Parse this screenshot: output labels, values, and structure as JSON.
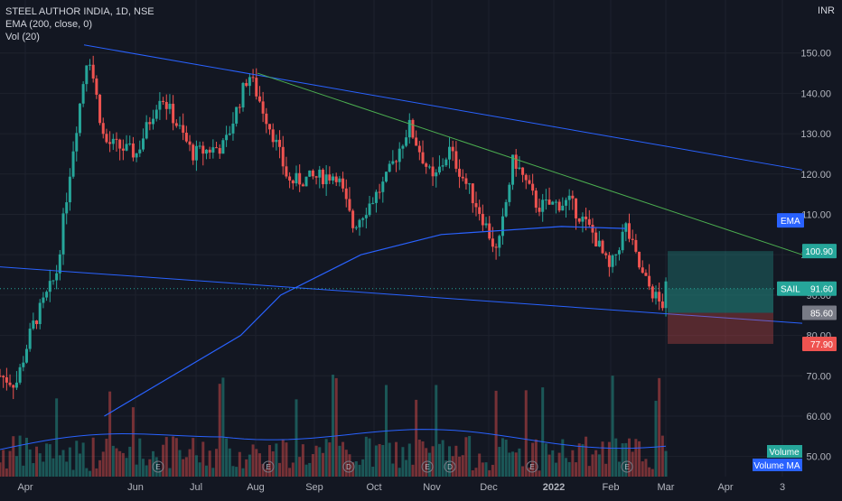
{
  "legend": {
    "symbol": "STEEL AUTHOR INDIA, 1D, NSE",
    "ema": "EMA (200, close, 0)",
    "vol": "Vol (20)"
  },
  "currency": "INR",
  "colors": {
    "background": "#131722",
    "up": "#26a69a",
    "down": "#ef5350",
    "trendline": "#2962ff",
    "ema": "#2962ff",
    "green_line": "#4caf50",
    "grid": "#1e222d"
  },
  "chart_data": [
    {
      "type": "candlestick",
      "title": "STEEL AUTHOR INDIA, 1D, NSE",
      "symbol_label": "SAIL",
      "x_ticks": [
        "Apr",
        "Jun",
        "Jul",
        "Aug",
        "Sep",
        "Oct",
        "Nov",
        "Dec",
        "2022",
        "Feb",
        "Mar",
        "Apr",
        "3"
      ],
      "y_ticks": [
        "150.00",
        "140.00",
        "130.00",
        "120.00",
        "110.00",
        "100.00",
        "90.00",
        "80.00",
        "70.00",
        "60.00",
        "50.00"
      ],
      "ylim": [
        45,
        160
      ],
      "price_labels": [
        {
          "label": "EMA",
          "value": "",
          "color": "#2962ff"
        },
        {
          "label": "",
          "value": "100.90",
          "color": "#26a69a"
        },
        {
          "label": "SAIL",
          "value": "91.60",
          "color": "#26a69a"
        },
        {
          "label": "",
          "value": "85.60",
          "color": "#787b86"
        },
        {
          "label": "",
          "value": "77.90",
          "color": "#ef5350"
        }
      ],
      "key_points": {
        "low_apr": 68,
        "peak_may": 151,
        "peak_aug": 145,
        "peak_oct": 132,
        "dec_high": 124,
        "last_close": 91.6
      },
      "ema_200": [
        [
          0.13,
          60
        ],
        [
          0.3,
          80
        ],
        [
          0.35,
          90
        ],
        [
          0.45,
          100
        ],
        [
          0.55,
          105
        ],
        [
          0.7,
          107
        ],
        [
          0.78,
          106.5
        ]
      ],
      "position": {
        "entry": 91.6,
        "target": 100.9,
        "stop": 77.9,
        "level": 85.6
      },
      "volume_ma_label": "Volume MA",
      "volume_label": "Volume"
    }
  ]
}
